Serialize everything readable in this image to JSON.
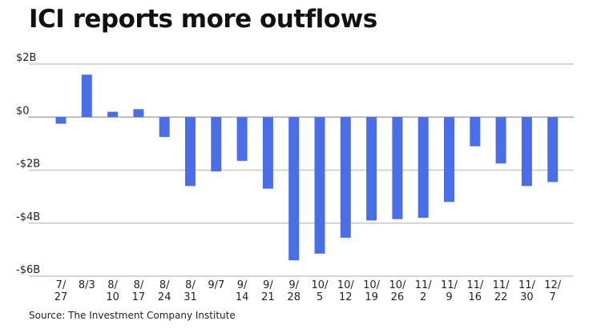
{
  "chart_data": {
    "type": "bar",
    "title": "ICI reports more outflows",
    "xlabel": "",
    "ylabel": "",
    "ylim": [
      -6,
      2
    ],
    "grid": true,
    "y_ticks": [
      {
        "value": 2,
        "label": "$2B"
      },
      {
        "value": 0,
        "label": "$0"
      },
      {
        "value": -2,
        "label": "-$2B"
      },
      {
        "value": -4,
        "label": "-$4B"
      },
      {
        "value": -6,
        "label": "-$6B"
      }
    ],
    "categories": [
      [
        "7/",
        "27"
      ],
      [
        "8/3"
      ],
      [
        "8/",
        "10"
      ],
      [
        "8/",
        "17"
      ],
      [
        "8/",
        "24"
      ],
      [
        "8/",
        "31"
      ],
      [
        "9/7"
      ],
      [
        "9/",
        "14"
      ],
      [
        "9/",
        "21"
      ],
      [
        "9/",
        "28"
      ],
      [
        "10/",
        "5"
      ],
      [
        "10/",
        "12"
      ],
      [
        "10/",
        "19"
      ],
      [
        "10/",
        "26"
      ],
      [
        "11/",
        "2"
      ],
      [
        "11/",
        "9"
      ],
      [
        "11/",
        "16"
      ],
      [
        "11/",
        "22"
      ],
      [
        "11/",
        "30"
      ],
      [
        "12/",
        "7"
      ]
    ],
    "series": [
      {
        "name": "Flows ($B)",
        "color": "#4a6ee8",
        "values": [
          -0.25,
          1.6,
          0.2,
          0.3,
          -0.75,
          -2.6,
          -2.05,
          -1.65,
          -2.7,
          -5.4,
          -5.15,
          -4.55,
          -3.9,
          -3.85,
          -3.8,
          -3.2,
          -1.1,
          -1.75,
          -2.6,
          -2.45
        ]
      }
    ],
    "source": "Source: The Investment Company Institute"
  }
}
